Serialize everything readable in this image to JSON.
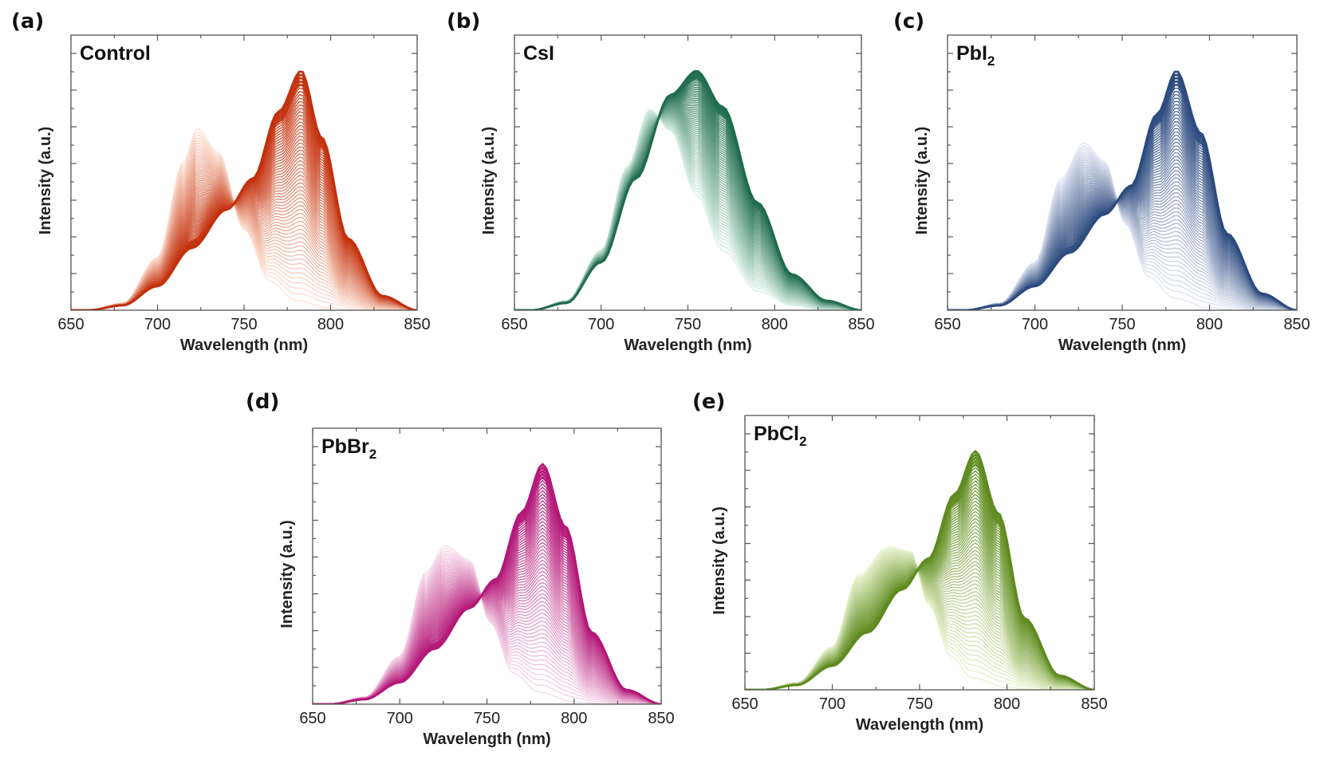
{
  "chart_data": [
    {
      "type": "line",
      "panel_label": "(a)",
      "title": "Control",
      "xlabel": "Wavelength (nm)",
      "ylabel": "Intensity (a.u.)",
      "xlim": [
        650,
        850
      ],
      "xticks": [
        "650",
        "700",
        "750",
        "800",
        "850"
      ],
      "ylim": [
        0,
        1.0
      ],
      "y_tick_labels": "none",
      "series_count": 60,
      "series_description": "Time-evolving PL spectra; early curves peak near 723 nm, later curves red-shift to a dominant peak near 783 nm",
      "early_spectrum": {
        "x": [
          660,
          680,
          700,
          715,
          723,
          735,
          750,
          765,
          780,
          800,
          820,
          840,
          850
        ],
        "y": [
          0.0,
          0.03,
          0.22,
          0.62,
          0.76,
          0.66,
          0.34,
          0.12,
          0.04,
          0.01,
          0.0,
          0.0,
          0.0
        ]
      },
      "late_spectrum": {
        "x": [
          660,
          680,
          700,
          720,
          740,
          755,
          770,
          783,
          795,
          810,
          830,
          850
        ],
        "y": [
          0.0,
          0.02,
          0.1,
          0.26,
          0.42,
          0.55,
          0.83,
          1.0,
          0.72,
          0.3,
          0.06,
          0.0
        ]
      },
      "colors": {
        "light": "#fde0d2",
        "dark": "#c2300c",
        "emphasis": "#a82606"
      }
    },
    {
      "type": "line",
      "panel_label": "(b)",
      "title": "CsI",
      "xlabel": "Wavelength (nm)",
      "ylabel": "Intensity (a.u.)",
      "xlim": [
        650,
        850
      ],
      "xticks": [
        "650",
        "700",
        "750",
        "800",
        "850"
      ],
      "ylim": [
        0,
        1.0
      ],
      "y_tick_labels": "none",
      "series_count": 60,
      "series_description": "Time-evolving PL spectra with a single broad peak shifting from ~728 nm to ~755 nm",
      "early_spectrum": {
        "x": [
          660,
          680,
          700,
          715,
          728,
          740,
          755,
          770,
          790,
          810,
          830,
          850
        ],
        "y": [
          0.0,
          0.04,
          0.25,
          0.6,
          0.84,
          0.75,
          0.48,
          0.25,
          0.08,
          0.02,
          0.0,
          0.0
        ]
      },
      "late_spectrum": {
        "x": [
          660,
          680,
          700,
          720,
          740,
          755,
          770,
          790,
          810,
          830,
          850
        ],
        "y": [
          0.0,
          0.03,
          0.2,
          0.55,
          0.9,
          1.0,
          0.85,
          0.45,
          0.15,
          0.04,
          0.0
        ]
      },
      "colors": {
        "light": "#d8efe5",
        "dark": "#1f6b4e",
        "emphasis": "#175a40"
      }
    },
    {
      "type": "line",
      "panel_label": "(c)",
      "title": "PbI2",
      "title_subscript": "2",
      "title_base": "PbI",
      "xlabel": "Wavelength (nm)",
      "ylabel": "Intensity (a.u.)",
      "xlim": [
        650,
        850
      ],
      "xticks": [
        "650",
        "700",
        "750",
        "800",
        "850"
      ],
      "ylim": [
        0,
        1.0
      ],
      "y_tick_labels": "none",
      "series_count": 60,
      "series_description": "Time-evolving PL spectra; early peak near 728 nm, later dominant peak near 781 nm",
      "early_spectrum": {
        "x": [
          660,
          680,
          700,
          715,
          728,
          740,
          752,
          765,
          780,
          800,
          820,
          850
        ],
        "y": [
          0.0,
          0.03,
          0.2,
          0.55,
          0.7,
          0.62,
          0.36,
          0.14,
          0.05,
          0.01,
          0.0,
          0.0
        ]
      },
      "late_spectrum": {
        "x": [
          660,
          680,
          700,
          720,
          740,
          755,
          770,
          781,
          795,
          810,
          830,
          850
        ],
        "y": [
          0.0,
          0.02,
          0.1,
          0.24,
          0.4,
          0.52,
          0.82,
          1.0,
          0.74,
          0.32,
          0.07,
          0.0
        ]
      },
      "colors": {
        "light": "#dfe5f1",
        "dark": "#2c4a7e",
        "emphasis": "#223b69"
      }
    },
    {
      "type": "line",
      "panel_label": "(d)",
      "title": "PbBr2",
      "title_base": "PbBr",
      "title_subscript": "2",
      "xlabel": "Wavelength (nm)",
      "ylabel": "Intensity (a.u.)",
      "xlim": [
        650,
        850
      ],
      "xticks": [
        "650",
        "700",
        "750",
        "800",
        "850"
      ],
      "ylim": [
        0,
        1.0
      ],
      "y_tick_labels": "none",
      "series_count": 60,
      "series_description": "Time-evolving PL spectra; early peak near 726 nm, later dominant peak near 782 nm",
      "early_spectrum": {
        "x": [
          660,
          680,
          700,
          715,
          726,
          740,
          752,
          765,
          780,
          800,
          820,
          850
        ],
        "y": [
          0.0,
          0.03,
          0.2,
          0.55,
          0.66,
          0.6,
          0.34,
          0.13,
          0.05,
          0.01,
          0.0,
          0.0
        ]
      },
      "late_spectrum": {
        "x": [
          660,
          680,
          700,
          720,
          740,
          755,
          770,
          782,
          795,
          810,
          830,
          850
        ],
        "y": [
          0.0,
          0.02,
          0.09,
          0.23,
          0.4,
          0.52,
          0.8,
          1.0,
          0.74,
          0.3,
          0.06,
          0.0
        ]
      },
      "colors": {
        "light": "#f6d8ea",
        "dark": "#b31777",
        "emphasis": "#96105f"
      }
    },
    {
      "type": "line",
      "panel_label": "(e)",
      "title": "PbCl2",
      "title_base": "PbCl",
      "title_subscript": "2",
      "xlabel": "Wavelength (nm)",
      "ylabel": "Intensity (a.u.)",
      "xlim": [
        650,
        850
      ],
      "xticks": [
        "650",
        "700",
        "750",
        "800",
        "850"
      ],
      "ylim": [
        0,
        1.0
      ],
      "y_tick_labels": "none",
      "series_count": 60,
      "series_description": "Time-evolving PL spectra; early shoulder near 732 nm, later dominant peak near 782 nm",
      "early_spectrum": {
        "x": [
          660,
          680,
          700,
          715,
          732,
          745,
          755,
          768,
          780,
          800,
          820,
          850
        ],
        "y": [
          0.0,
          0.03,
          0.18,
          0.48,
          0.6,
          0.58,
          0.36,
          0.14,
          0.05,
          0.01,
          0.0,
          0.0
        ]
      },
      "late_spectrum": {
        "x": [
          660,
          680,
          700,
          720,
          740,
          755,
          770,
          782,
          795,
          810,
          830,
          850
        ],
        "y": [
          0.0,
          0.02,
          0.1,
          0.24,
          0.42,
          0.55,
          0.82,
          1.0,
          0.74,
          0.3,
          0.06,
          0.0
        ]
      },
      "colors": {
        "light": "#e6f2cc",
        "dark": "#5d8a1e",
        "emphasis": "#4a7417"
      }
    }
  ]
}
